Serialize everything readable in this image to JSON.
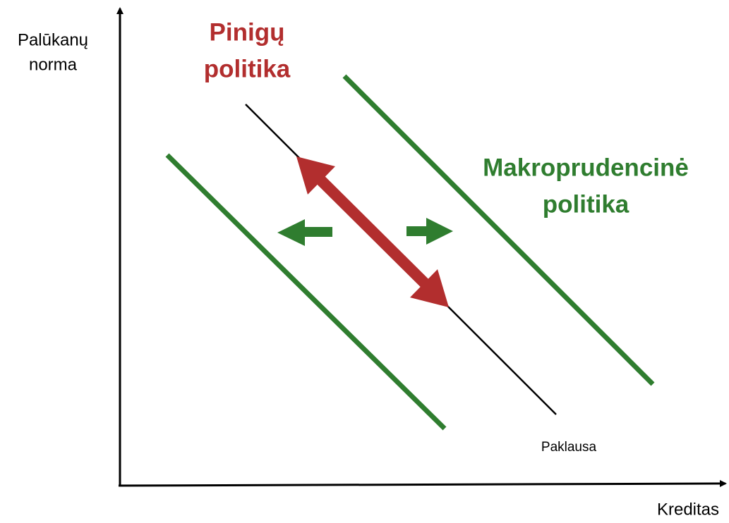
{
  "y_axis_label": [
    "Palūkanų",
    "norma"
  ],
  "x_axis_label": "Kreditas",
  "monetary_policy": [
    "Pinigų",
    "politika"
  ],
  "macroprudential_policy": [
    "Makroprudencinė",
    "politika"
  ],
  "demand_label": "Paklausa"
}
